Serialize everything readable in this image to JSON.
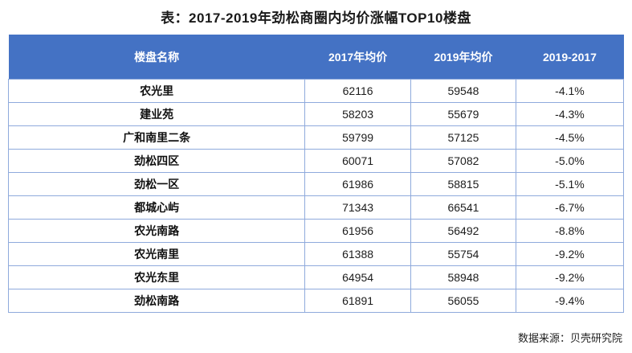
{
  "title": "表：2017-2019年劲松商圈内均价涨幅TOP10楼盘",
  "footer": {
    "source": "数据来源：贝壳研究院"
  },
  "colors": {
    "header_bg": "#4472C4",
    "header_text": "#FFFFFF",
    "grid_border": "#8FAADC",
    "body_text": "#1C1C1C"
  },
  "chart_data": {
    "type": "table",
    "title": "表：2017-2019年劲松商圈内均价涨幅TOP10楼盘",
    "columns": [
      "楼盘名称",
      "2017年均价",
      "2019年均价",
      "2019-2017"
    ],
    "rows": [
      [
        "农光里",
        "62116",
        "59548",
        "-4.1%"
      ],
      [
        "建业苑",
        "58203",
        "55679",
        "-4.3%"
      ],
      [
        "广和南里二条",
        "59799",
        "57125",
        "-4.5%"
      ],
      [
        "劲松四区",
        "60071",
        "57082",
        "-5.0%"
      ],
      [
        "劲松一区",
        "61986",
        "58815",
        "-5.1%"
      ],
      [
        "都城心屿",
        "71343",
        "66541",
        "-6.7%"
      ],
      [
        "农光南路",
        "61956",
        "56492",
        "-8.8%"
      ],
      [
        "农光南里",
        "61388",
        "55754",
        "-9.2%"
      ],
      [
        "农光东里",
        "64954",
        "58948",
        "-9.2%"
      ],
      [
        "劲松南路",
        "61891",
        "56055",
        "-9.4%"
      ]
    ]
  }
}
